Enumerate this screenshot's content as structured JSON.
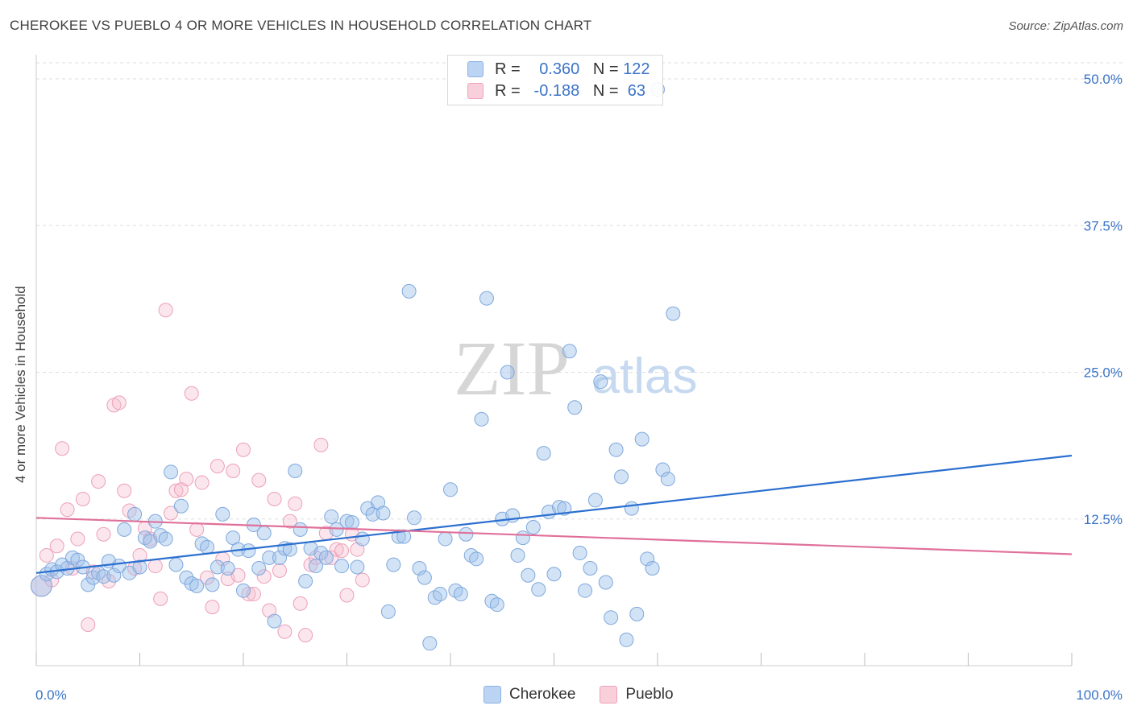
{
  "header": {
    "title": "CHEROKEE VS PUEBLO 4 OR MORE VEHICLES IN HOUSEHOLD CORRELATION CHART",
    "source": "Source: ZipAtlas.com"
  },
  "watermark": {
    "zip": "ZIP",
    "atlas": "atlas"
  },
  "legend": {
    "rows": [
      {
        "r_label": "R =",
        "r_value": "0.360",
        "n_label": "N =",
        "n_value": "122"
      },
      {
        "r_label": "R =",
        "r_value": "-0.188",
        "n_label": "N =",
        "n_value": "63"
      }
    ]
  },
  "bottom_legend": {
    "cherokee": "Cherokee",
    "pueblo": "Pueblo"
  },
  "chart_data": {
    "type": "scatter",
    "title": "CHEROKEE VS PUEBLO 4 OR MORE VEHICLES IN HOUSEHOLD CORRELATION CHART",
    "xlabel": "",
    "ylabel": "4 or more Vehicles in Household",
    "xlim": [
      0,
      100
    ],
    "ylim": [
      0,
      50
    ],
    "x_tick_labels": [
      "0.0%",
      "100.0%"
    ],
    "y_ticks": [
      12.5,
      25.0,
      37.5,
      50.0
    ],
    "y_tick_labels": [
      "12.5%",
      "25.0%",
      "37.5%",
      "50.0%"
    ],
    "grid": true,
    "legend_position": "top-center",
    "colors": {
      "cherokee": "#9ec0ea",
      "cherokee_line": "#2b6fd0",
      "pueblo": "#f5b8cb",
      "pueblo_line": "#e0709a",
      "tick_text": "#3b73c8"
    },
    "series": [
      {
        "name": "Cherokee",
        "r": 0.36,
        "n": 122,
        "trend": [
          [
            0,
            7.9
          ],
          [
            100,
            17.9
          ]
        ],
        "points": [
          [
            0.5,
            6.8
          ],
          [
            1,
            7.8
          ],
          [
            1.5,
            8.2
          ],
          [
            2,
            8.0
          ],
          [
            2.5,
            8.6
          ],
          [
            3,
            8.3
          ],
          [
            3.5,
            9.2
          ],
          [
            4,
            9.0
          ],
          [
            4.5,
            8.4
          ],
          [
            5,
            6.9
          ],
          [
            5.5,
            7.5
          ],
          [
            6,
            7.9
          ],
          [
            6.5,
            7.6
          ],
          [
            7,
            8.9
          ],
          [
            7.5,
            7.7
          ],
          [
            8,
            8.5
          ],
          [
            8.5,
            11.6
          ],
          [
            9,
            7.9
          ],
          [
            9.5,
            12.9
          ],
          [
            10,
            8.4
          ],
          [
            10.5,
            10.9
          ],
          [
            11,
            10.6
          ],
          [
            11.5,
            12.3
          ],
          [
            12,
            11.1
          ],
          [
            12.5,
            10.8
          ],
          [
            13,
            16.5
          ],
          [
            13.5,
            8.6
          ],
          [
            14,
            13.6
          ],
          [
            14.5,
            7.5
          ],
          [
            15,
            7.0
          ],
          [
            15.5,
            6.8
          ],
          [
            16,
            10.4
          ],
          [
            16.5,
            10.1
          ],
          [
            17,
            6.9
          ],
          [
            17.5,
            8.4
          ],
          [
            18,
            12.9
          ],
          [
            18.5,
            8.3
          ],
          [
            19,
            10.9
          ],
          [
            19.5,
            9.9
          ],
          [
            20,
            6.4
          ],
          [
            20.5,
            9.8
          ],
          [
            21,
            12.0
          ],
          [
            21.5,
            8.3
          ],
          [
            22,
            11.3
          ],
          [
            22.5,
            9.2
          ],
          [
            23,
            3.8
          ],
          [
            23.5,
            9.2
          ],
          [
            24,
            10.0
          ],
          [
            24.5,
            9.9
          ],
          [
            25,
            16.6
          ],
          [
            25.5,
            11.6
          ],
          [
            26,
            7.2
          ],
          [
            26.5,
            10.0
          ],
          [
            27,
            8.5
          ],
          [
            27.5,
            9.6
          ],
          [
            28,
            9.2
          ],
          [
            28.5,
            12.7
          ],
          [
            29,
            11.6
          ],
          [
            29.5,
            8.5
          ],
          [
            30,
            12.3
          ],
          [
            30.5,
            12.2
          ],
          [
            31,
            8.4
          ],
          [
            31.5,
            10.8
          ],
          [
            32,
            13.4
          ],
          [
            32.5,
            12.9
          ],
          [
            33,
            13.9
          ],
          [
            33.5,
            13.0
          ],
          [
            34,
            4.6
          ],
          [
            34.5,
            8.6
          ],
          [
            35,
            11.0
          ],
          [
            35.5,
            11.0
          ],
          [
            36,
            31.9
          ],
          [
            36.5,
            12.6
          ],
          [
            37,
            8.3
          ],
          [
            37.5,
            7.5
          ],
          [
            38,
            1.9
          ],
          [
            38.5,
            5.8
          ],
          [
            39,
            6.1
          ],
          [
            39.5,
            10.8
          ],
          [
            40,
            15.0
          ],
          [
            40.5,
            6.4
          ],
          [
            41,
            6.1
          ],
          [
            41.5,
            11.2
          ],
          [
            42,
            9.4
          ],
          [
            42.5,
            9.1
          ],
          [
            43,
            21.0
          ],
          [
            43.5,
            31.3
          ],
          [
            44,
            5.5
          ],
          [
            44.5,
            5.2
          ],
          [
            45,
            12.5
          ],
          [
            45.5,
            25.0
          ],
          [
            46,
            12.8
          ],
          [
            46.5,
            9.4
          ],
          [
            47,
            10.9
          ],
          [
            47.5,
            7.7
          ],
          [
            48,
            11.8
          ],
          [
            48.5,
            6.5
          ],
          [
            49,
            18.1
          ],
          [
            49.5,
            13.1
          ],
          [
            50,
            7.8
          ],
          [
            50.5,
            13.5
          ],
          [
            51,
            13.4
          ],
          [
            51.5,
            26.8
          ],
          [
            52,
            22.0
          ],
          [
            52.5,
            9.6
          ],
          [
            53,
            6.4
          ],
          [
            53.5,
            8.3
          ],
          [
            54,
            14.1
          ],
          [
            54.5,
            24.2
          ],
          [
            55,
            7.1
          ],
          [
            55.5,
            4.1
          ],
          [
            56,
            18.4
          ],
          [
            56.5,
            16.1
          ],
          [
            57,
            2.2
          ],
          [
            57.5,
            13.4
          ],
          [
            58,
            4.4
          ],
          [
            58.5,
            19.3
          ],
          [
            59,
            9.1
          ],
          [
            59.5,
            8.3
          ],
          [
            60,
            49.1
          ],
          [
            60.5,
            16.7
          ],
          [
            61,
            15.9
          ],
          [
            61.5,
            30.0
          ]
        ]
      },
      {
        "name": "Pueblo",
        "r": -0.188,
        "n": 63,
        "trend": [
          [
            0,
            12.6
          ],
          [
            100,
            9.5
          ]
        ],
        "points": [
          [
            0.5,
            6.8
          ],
          [
            1,
            9.4
          ],
          [
            1.5,
            7.3
          ],
          [
            2,
            10.2
          ],
          [
            2.5,
            18.5
          ],
          [
            3,
            13.3
          ],
          [
            3.5,
            8.3
          ],
          [
            4,
            10.8
          ],
          [
            4.5,
            14.2
          ],
          [
            5,
            3.5
          ],
          [
            5.5,
            8.0
          ],
          [
            6,
            15.7
          ],
          [
            6.5,
            11.2
          ],
          [
            7,
            7.2
          ],
          [
            7.5,
            22.2
          ],
          [
            8,
            22.4
          ],
          [
            8.5,
            14.9
          ],
          [
            9,
            13.2
          ],
          [
            9.5,
            8.3
          ],
          [
            10,
            9.4
          ],
          [
            10.5,
            11.7
          ],
          [
            11,
            10.8
          ],
          [
            11.5,
            8.5
          ],
          [
            12,
            5.7
          ],
          [
            12.5,
            30.3
          ],
          [
            13,
            13.0
          ],
          [
            13.5,
            14.9
          ],
          [
            14,
            15.0
          ],
          [
            14.5,
            15.9
          ],
          [
            15,
            23.2
          ],
          [
            15.5,
            11.6
          ],
          [
            16,
            15.6
          ],
          [
            16.5,
            7.5
          ],
          [
            17,
            5.0
          ],
          [
            17.5,
            17.0
          ],
          [
            18,
            9.1
          ],
          [
            18.5,
            7.4
          ],
          [
            19,
            16.6
          ],
          [
            19.5,
            7.7
          ],
          [
            20,
            18.4
          ],
          [
            20.5,
            6.1
          ],
          [
            21,
            6.1
          ],
          [
            21.5,
            15.8
          ],
          [
            22,
            7.6
          ],
          [
            22.5,
            4.7
          ],
          [
            23,
            14.2
          ],
          [
            23.5,
            8.1
          ],
          [
            24,
            2.9
          ],
          [
            24.5,
            12.3
          ],
          [
            25,
            13.8
          ],
          [
            25.5,
            5.3
          ],
          [
            26,
            2.6
          ],
          [
            26.5,
            8.6
          ],
          [
            27,
            9.2
          ],
          [
            27.5,
            18.8
          ],
          [
            28,
            11.3
          ],
          [
            28.5,
            9.2
          ],
          [
            29,
            9.9
          ],
          [
            29.5,
            9.8
          ],
          [
            30,
            6.0
          ],
          [
            30.5,
            11.2
          ],
          [
            31,
            9.9
          ],
          [
            31.5,
            7.3
          ]
        ]
      }
    ]
  }
}
